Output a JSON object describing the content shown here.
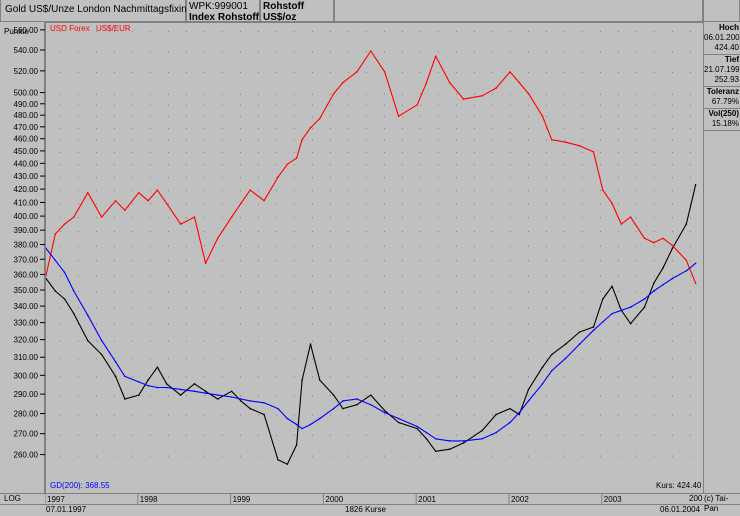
{
  "header": {
    "title": "Gold US$/Unze London Nachmittagsfixing",
    "wpk": "WPK:999001",
    "index": "Index Rohstoff",
    "commodity": "Rohstoff",
    "unit": "US$/oz"
  },
  "axis": {
    "label": "Punkte",
    "log_label": "LOG"
  },
  "legend": {
    "series_a": "USD Forex",
    "series_b": "US$/EUR",
    "gd_label": "GD(200): 368.55",
    "kurs_label": "Kurs: 424.40"
  },
  "side": {
    "hoch_label": "Hoch",
    "hoch_date": "06.01.2004",
    "hoch_value": "424.40",
    "tief_label": "Tief",
    "tief_date": "21.07.1999",
    "tief_value": "252.93",
    "toleranz_label": "Toleranz",
    "toleranz_value": "67.79%",
    "vol_label": "Vol(250)",
    "vol_value": "15.18%"
  },
  "bottom": {
    "start_date": "07.01.1997",
    "count": "1826 Kurse",
    "end_date": "06.01.2004",
    "credit": "(c) Tai-Pan",
    "last_year": "200"
  },
  "colors": {
    "price": "#000000",
    "forex": "#ff0000",
    "gd200": "#0000ff",
    "grid": "#808080"
  },
  "chart_data": {
    "type": "line",
    "y_scale": "log",
    "ylim": [
      243,
      568
    ],
    "y_ticks": [
      260,
      270,
      280,
      290,
      300,
      310,
      320,
      330,
      340,
      350,
      360,
      370,
      380,
      390,
      400,
      410,
      420,
      430,
      440,
      450,
      460,
      470,
      480,
      490,
      500,
      520,
      540,
      560
    ],
    "x_tick_labels": [
      "1997",
      "1998",
      "1999",
      "2000",
      "2001",
      "2002",
      "2003"
    ],
    "x": [
      1997.0,
      1997.1,
      1997.2,
      1997.3,
      1997.45,
      1997.6,
      1997.75,
      1997.85,
      1998.0,
      1998.1,
      1998.2,
      1998.3,
      1998.45,
      1998.6,
      1998.72,
      1998.85,
      1999.0,
      1999.1,
      1999.2,
      1999.35,
      1999.5,
      1999.6,
      1999.7,
      1999.76,
      1999.85,
      1999.95,
      2000.1,
      2000.2,
      2000.35,
      2000.5,
      2000.65,
      2000.8,
      2001.0,
      2001.1,
      2001.2,
      2001.35,
      2001.5,
      2001.7,
      2001.85,
      2002.0,
      2002.1,
      2002.2,
      2002.35,
      2002.45,
      2002.6,
      2002.75,
      2002.9,
      2003.0,
      2003.1,
      2003.2,
      2003.3,
      2003.45,
      2003.55,
      2003.65,
      2003.75,
      2003.9,
      2004.0
    ],
    "series": [
      {
        "name": "",
        "color": "#000000",
        "values": [
          358,
          350,
          345,
          336,
          320,
          312,
          300,
          288,
          290,
          298,
          305,
          296,
          290,
          296,
          292,
          288,
          292,
          287,
          283,
          280,
          258,
          256,
          265,
          298,
          318,
          298,
          290,
          283,
          285,
          290,
          282,
          276,
          273,
          268,
          262,
          263,
          266,
          272,
          280,
          283,
          280,
          293,
          305,
          312,
          318,
          325,
          328,
          345,
          353,
          338,
          330,
          340,
          355,
          365,
          378,
          395,
          424
        ]
      },
      {
        "name": "USD Forex",
        "color": "#ff0000",
        "values": [
          360,
          388,
          395,
          400,
          418,
          400,
          412,
          405,
          418,
          412,
          420,
          410,
          395,
          400,
          368,
          385,
          400,
          410,
          420,
          412,
          430,
          440,
          445,
          460,
          470,
          478,
          500,
          510,
          520,
          540,
          520,
          480,
          490,
          510,
          535,
          510,
          495,
          498,
          505,
          520,
          510,
          500,
          480,
          460,
          458,
          455,
          450,
          420,
          410,
          395,
          400,
          385,
          382,
          385,
          380,
          370,
          355
        ]
      },
      {
        "name": "GD(200)",
        "color": "#0000ff",
        "values": [
          378,
          370,
          362,
          350,
          335,
          320,
          308,
          300,
          297,
          295,
          294,
          294,
          293,
          292,
          291,
          290,
          289,
          288,
          287,
          286,
          283,
          278,
          275,
          273,
          275,
          278,
          283,
          287,
          288,
          285,
          281,
          278,
          274,
          271,
          268,
          267,
          267,
          268,
          271,
          276,
          281,
          287,
          296,
          303,
          310,
          318,
          326,
          331,
          336,
          338,
          340,
          345,
          350,
          354,
          358,
          363,
          368
        ]
      }
    ]
  }
}
